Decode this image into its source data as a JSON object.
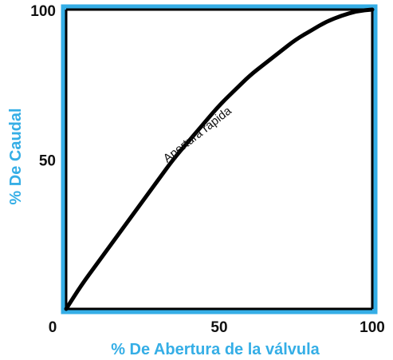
{
  "chart_data": {
    "type": "line",
    "title": "",
    "xlabel": "% De Abertura de la válvula",
    "ylabel": "% De Caudal",
    "xlim": [
      0,
      100
    ],
    "ylim": [
      0,
      100
    ],
    "x_ticks": [
      "0",
      "50",
      "100"
    ],
    "y_ticks": [
      "100",
      "50"
    ],
    "grid": false,
    "series": [
      {
        "name": "Apertura rápida",
        "x": [
          0,
          5,
          10,
          15,
          20,
          25,
          30,
          35,
          40,
          45,
          50,
          55,
          60,
          65,
          70,
          75,
          80,
          85,
          90,
          95,
          100
        ],
        "y": [
          0,
          8,
          15,
          22,
          29,
          36,
          43,
          50,
          56,
          62,
          68,
          73,
          78,
          82,
          86,
          90,
          93,
          96,
          98,
          99.5,
          100
        ]
      }
    ],
    "colors": {
      "frame": "#35aee6",
      "curve": "#000000",
      "axis_title": "#35aee6",
      "tick_label": "#111111"
    }
  }
}
